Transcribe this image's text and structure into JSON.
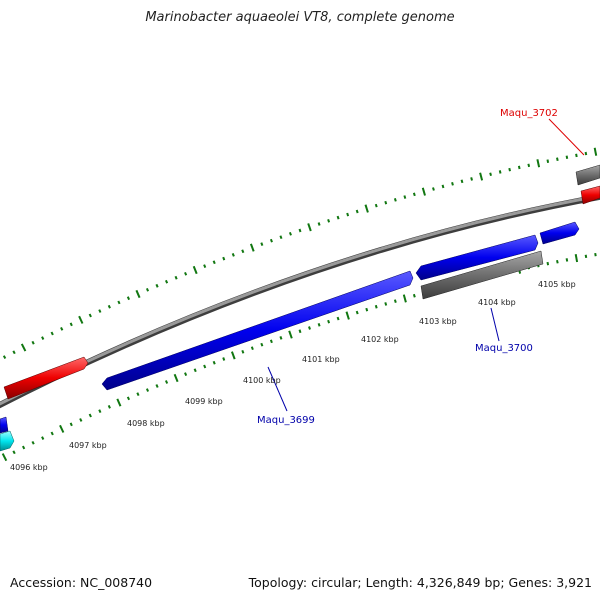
{
  "title": "Marinobacter aquaeolei VT8, complete genome",
  "footer": {
    "accession": "Accession: NC_008740",
    "summary": "Topology: circular; Length: 4,326,849 bp; Genes: 3,921"
  },
  "colors": {
    "forward_gene": "#ff0000",
    "reverse_gene": "#0000ff",
    "other_feature": "#707070",
    "rna_feature": "#00e5ee",
    "backbone": "#808080",
    "tick": "#117711",
    "label_red": "#dd0000",
    "label_blue": "#0000aa"
  },
  "axis": {
    "unit": "kbp",
    "ticks": [
      "4096 kbp",
      "4097 kbp",
      "4098 kbp",
      "4099 kbp",
      "4100 kbp",
      "4101 kbp",
      "4102 kbp",
      "4103 kbp",
      "4104 kbp",
      "4105 kbp"
    ]
  },
  "gene_labels": [
    {
      "name": "Maqu_3702",
      "color": "red"
    },
    {
      "name": "Maqu_3700",
      "color": "blue"
    },
    {
      "name": "Maqu_3699",
      "color": "blue"
    }
  ]
}
